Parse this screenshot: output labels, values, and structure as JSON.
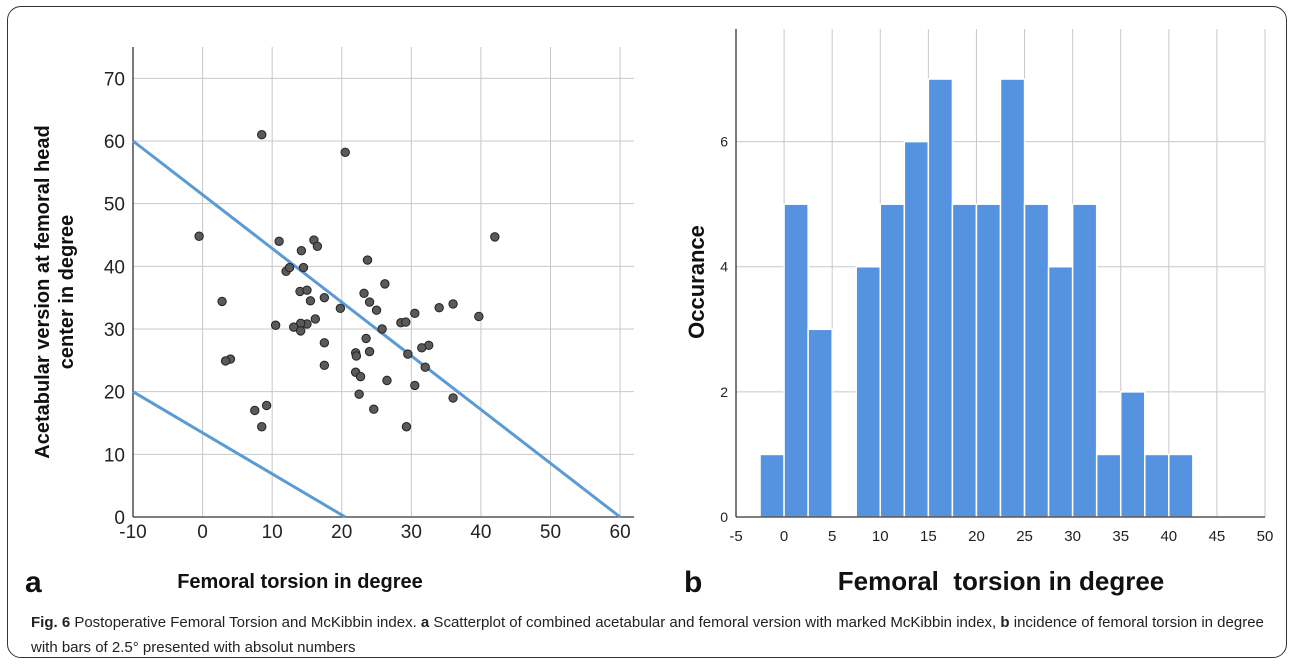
{
  "chart_data": [
    {
      "type": "scatter",
      "panel_label": "a",
      "xlabel": "Femoral torsion in degree",
      "ylabel_line1": "Acetabular version at femoral head",
      "ylabel_line2": "center in degree",
      "xlim": [
        -10,
        62
      ],
      "ylim": [
        0,
        75
      ],
      "xticks": [
        -10,
        0,
        10,
        20,
        30,
        40,
        50,
        60
      ],
      "yticks": [
        0,
        10,
        20,
        30,
        40,
        50,
        60,
        70
      ],
      "grid": true,
      "point_color": "#5a5a5a",
      "line_color": "#5b9bd5",
      "points": [
        [
          8.5,
          61
        ],
        [
          20.5,
          58.2
        ],
        [
          -0.5,
          44.8
        ],
        [
          11,
          44
        ],
        [
          16,
          44.2
        ],
        [
          16.5,
          43.2
        ],
        [
          14.2,
          42.5
        ],
        [
          42,
          44.7
        ],
        [
          23.7,
          41
        ],
        [
          12,
          39.2
        ],
        [
          12.5,
          39.8
        ],
        [
          14.5,
          39.8
        ],
        [
          26.2,
          37.2
        ],
        [
          23.2,
          35.7
        ],
        [
          14,
          36
        ],
        [
          15,
          36.2
        ],
        [
          17.5,
          35
        ],
        [
          15.5,
          34.5
        ],
        [
          24,
          34.3
        ],
        [
          36,
          34
        ],
        [
          34,
          33.4
        ],
        [
          2.8,
          34.4
        ],
        [
          19.8,
          33.3
        ],
        [
          25,
          33
        ],
        [
          30.5,
          32.5
        ],
        [
          39.7,
          32
        ],
        [
          16.2,
          31.6
        ],
        [
          28.5,
          31
        ],
        [
          29.2,
          31.1
        ],
        [
          15,
          30.8
        ],
        [
          14.1,
          30.9
        ],
        [
          10.5,
          30.6
        ],
        [
          13.1,
          30.3
        ],
        [
          14.1,
          29.7
        ],
        [
          25.8,
          30
        ],
        [
          23.5,
          28.5
        ],
        [
          17.5,
          27.8
        ],
        [
          32.5,
          27.4
        ],
        [
          31.5,
          27
        ],
        [
          24,
          26.4
        ],
        [
          22,
          26.2
        ],
        [
          29.5,
          26
        ],
        [
          22.1,
          25.7
        ],
        [
          4,
          25.2
        ],
        [
          3.3,
          24.9
        ],
        [
          17.5,
          24.2
        ],
        [
          32,
          23.9
        ],
        [
          22,
          23.1
        ],
        [
          22.7,
          22.4
        ],
        [
          26.5,
          21.8
        ],
        [
          30.5,
          21
        ],
        [
          22.5,
          19.6
        ],
        [
          36,
          19
        ],
        [
          9.2,
          17.8
        ],
        [
          24.6,
          17.2
        ],
        [
          7.5,
          17
        ],
        [
          8.5,
          14.4
        ],
        [
          29.3,
          14.4
        ]
      ],
      "lines": [
        {
          "x": [
            -10,
            60
          ],
          "y": [
            60,
            0
          ]
        },
        {
          "x": [
            -10,
            20.5
          ],
          "y": [
            20,
            0
          ]
        }
      ]
    },
    {
      "type": "bar",
      "panel_label": "b",
      "xlabel": "Femoral  torsion in degree",
      "ylabel": "Occurance",
      "bin_width": 2.5,
      "xlim": [
        -5,
        50
      ],
      "ylim": [
        0,
        7.8
      ],
      "xticks": [
        -5,
        0,
        5,
        10,
        15,
        20,
        25,
        30,
        35,
        40,
        45,
        50
      ],
      "yticks": [
        0,
        2,
        4,
        6
      ],
      "grid": true,
      "bar_color": "#5593e0",
      "bin_starts": [
        -2.5,
        0,
        2.5,
        5,
        7.5,
        10,
        12.5,
        15,
        17.5,
        20,
        22.5,
        25,
        27.5,
        30,
        32.5,
        35,
        37.5,
        40
      ],
      "values": [
        1,
        5,
        3,
        0,
        4,
        5,
        6,
        7,
        5,
        5,
        7,
        5,
        4,
        5,
        1,
        2,
        1,
        1
      ]
    }
  ],
  "caption": {
    "fig_label": "Fig. 6",
    "title": " Postoperative Femoral Torsion and McKibbin index. ",
    "a_label": "a",
    "a_text": " Scatterplot of combined acetabular and femoral version with marked McKibbin index, ",
    "b_label": "b",
    "b_text": " incidence of femoral torsion in degree with bars of 2.5° presented with absolut numbers"
  }
}
